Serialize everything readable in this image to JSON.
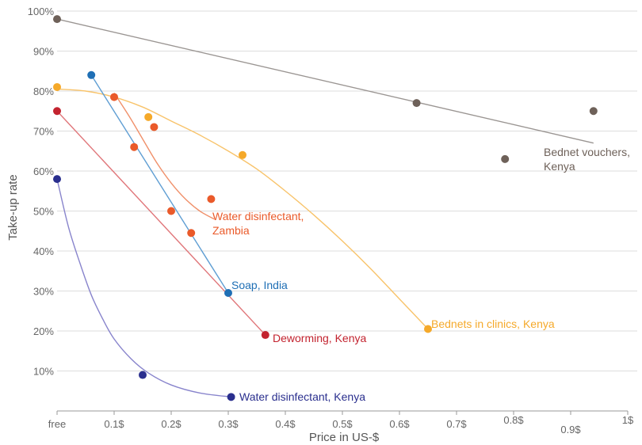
{
  "chart_data": {
    "type": "scatter",
    "xlabel": "Price in US-$",
    "ylabel": "Take-up rate",
    "xlim": [
      0,
      1
    ],
    "ylim": [
      0,
      100
    ],
    "grid": "horizontal",
    "x_ticks": [
      {
        "value": 0,
        "label": "free"
      },
      {
        "value": 0.1,
        "label": "0.1$"
      },
      {
        "value": 0.2,
        "label": "0.2$"
      },
      {
        "value": 0.3,
        "label": "0.3$"
      },
      {
        "value": 0.4,
        "label": "0.4$"
      },
      {
        "value": 0.5,
        "label": "0.5$"
      },
      {
        "value": 0.6,
        "label": "0.6$"
      },
      {
        "value": 0.7,
        "label": "0.7$"
      },
      {
        "value": 0.8,
        "label": "0.8$"
      },
      {
        "value": 0.9,
        "label": "0.9$"
      },
      {
        "value": 1.0,
        "label": "1$"
      }
    ],
    "y_ticks": [
      {
        "value": 10,
        "label": "10%"
      },
      {
        "value": 20,
        "label": "20%"
      },
      {
        "value": 30,
        "label": "30%"
      },
      {
        "value": 40,
        "label": "40%"
      },
      {
        "value": 50,
        "label": "50%"
      },
      {
        "value": 60,
        "label": "60%"
      },
      {
        "value": 70,
        "label": "70%"
      },
      {
        "value": 80,
        "label": "80%"
      },
      {
        "value": 90,
        "label": "90%"
      },
      {
        "value": 100,
        "label": "100%"
      }
    ],
    "series": [
      {
        "name": "Bednet vouchers, Kenya",
        "label_lines": [
          "Bednet vouchers,",
          "Kenya"
        ],
        "color": "#6e6159",
        "line_color": "#9a9592",
        "fit": "linear",
        "points": [
          [
            0,
            98
          ],
          [
            0.63,
            77
          ],
          [
            0.785,
            63
          ],
          [
            0.94,
            75
          ]
        ],
        "fit_line": [
          [
            0,
            98
          ],
          [
            0.94,
            67
          ]
        ]
      },
      {
        "name": "Bednets in clinics, Kenya",
        "label_lines": [
          "Bednets in clinics, Kenya"
        ],
        "color": "#f5a92a",
        "line_color": "#f8c36a",
        "fit": "curve",
        "points": [
          [
            0,
            81
          ],
          [
            0.16,
            73.5
          ],
          [
            0.325,
            64
          ],
          [
            0.65,
            20.5
          ]
        ],
        "fit_line": [
          [
            0,
            80.5
          ],
          [
            0.05,
            80
          ],
          [
            0.1,
            78.5
          ],
          [
            0.15,
            76
          ],
          [
            0.2,
            72.5
          ],
          [
            0.25,
            69
          ],
          [
            0.3,
            65
          ],
          [
            0.35,
            60.5
          ],
          [
            0.4,
            55
          ],
          [
            0.45,
            49
          ],
          [
            0.5,
            42.5
          ],
          [
            0.55,
            35.5
          ],
          [
            0.6,
            28
          ],
          [
            0.65,
            20.5
          ]
        ]
      },
      {
        "name": "Water disinfectant, Zambia",
        "label_lines": [
          "Water disinfectant,",
          "Zambia"
        ],
        "color": "#ea5a2a",
        "line_color": "#f0906a",
        "fit": "curve",
        "points": [
          [
            0.1,
            78.5
          ],
          [
            0.135,
            66
          ],
          [
            0.17,
            71
          ],
          [
            0.2,
            50
          ],
          [
            0.235,
            44.5
          ],
          [
            0.27,
            53
          ]
        ],
        "fit_line": [
          [
            0.1,
            79.5
          ],
          [
            0.125,
            74
          ],
          [
            0.15,
            68
          ],
          [
            0.175,
            62
          ],
          [
            0.2,
            57
          ],
          [
            0.225,
            53
          ],
          [
            0.25,
            50
          ],
          [
            0.275,
            48
          ]
        ]
      },
      {
        "name": "Soap, India",
        "label_lines": [
          "Soap, India"
        ],
        "color": "#1f6fb5",
        "line_color": "#5f9ed3",
        "fit": "linear",
        "points": [
          [
            0.06,
            84
          ],
          [
            0.3,
            29.5
          ]
        ],
        "fit_line": [
          [
            0.06,
            84
          ],
          [
            0.3,
            29.5
          ]
        ]
      },
      {
        "name": "Deworming, Kenya",
        "label_lines": [
          "Deworming, Kenya"
        ],
        "color": "#c3232f",
        "line_color": "#e0767a",
        "fit": "linear",
        "points": [
          [
            0,
            75
          ],
          [
            0.365,
            19
          ]
        ],
        "fit_line": [
          [
            0,
            75
          ],
          [
            0.365,
            19
          ]
        ]
      },
      {
        "name": "Water disinfectant, Kenya",
        "label_lines": [
          "Water disinfectant, Kenya"
        ],
        "color": "#2a2f8e",
        "line_color": "#8884cc",
        "fit": "curve",
        "points": [
          [
            0,
            58
          ],
          [
            0.15,
            9
          ],
          [
            0.305,
            3.5
          ]
        ],
        "fit_line": [
          [
            0,
            58
          ],
          [
            0.02,
            46
          ],
          [
            0.04,
            37
          ],
          [
            0.06,
            29
          ],
          [
            0.08,
            23
          ],
          [
            0.1,
            18
          ],
          [
            0.13,
            13
          ],
          [
            0.16,
            9.5
          ],
          [
            0.2,
            6.5
          ],
          [
            0.25,
            4.5
          ],
          [
            0.305,
            3.5
          ]
        ]
      }
    ]
  }
}
